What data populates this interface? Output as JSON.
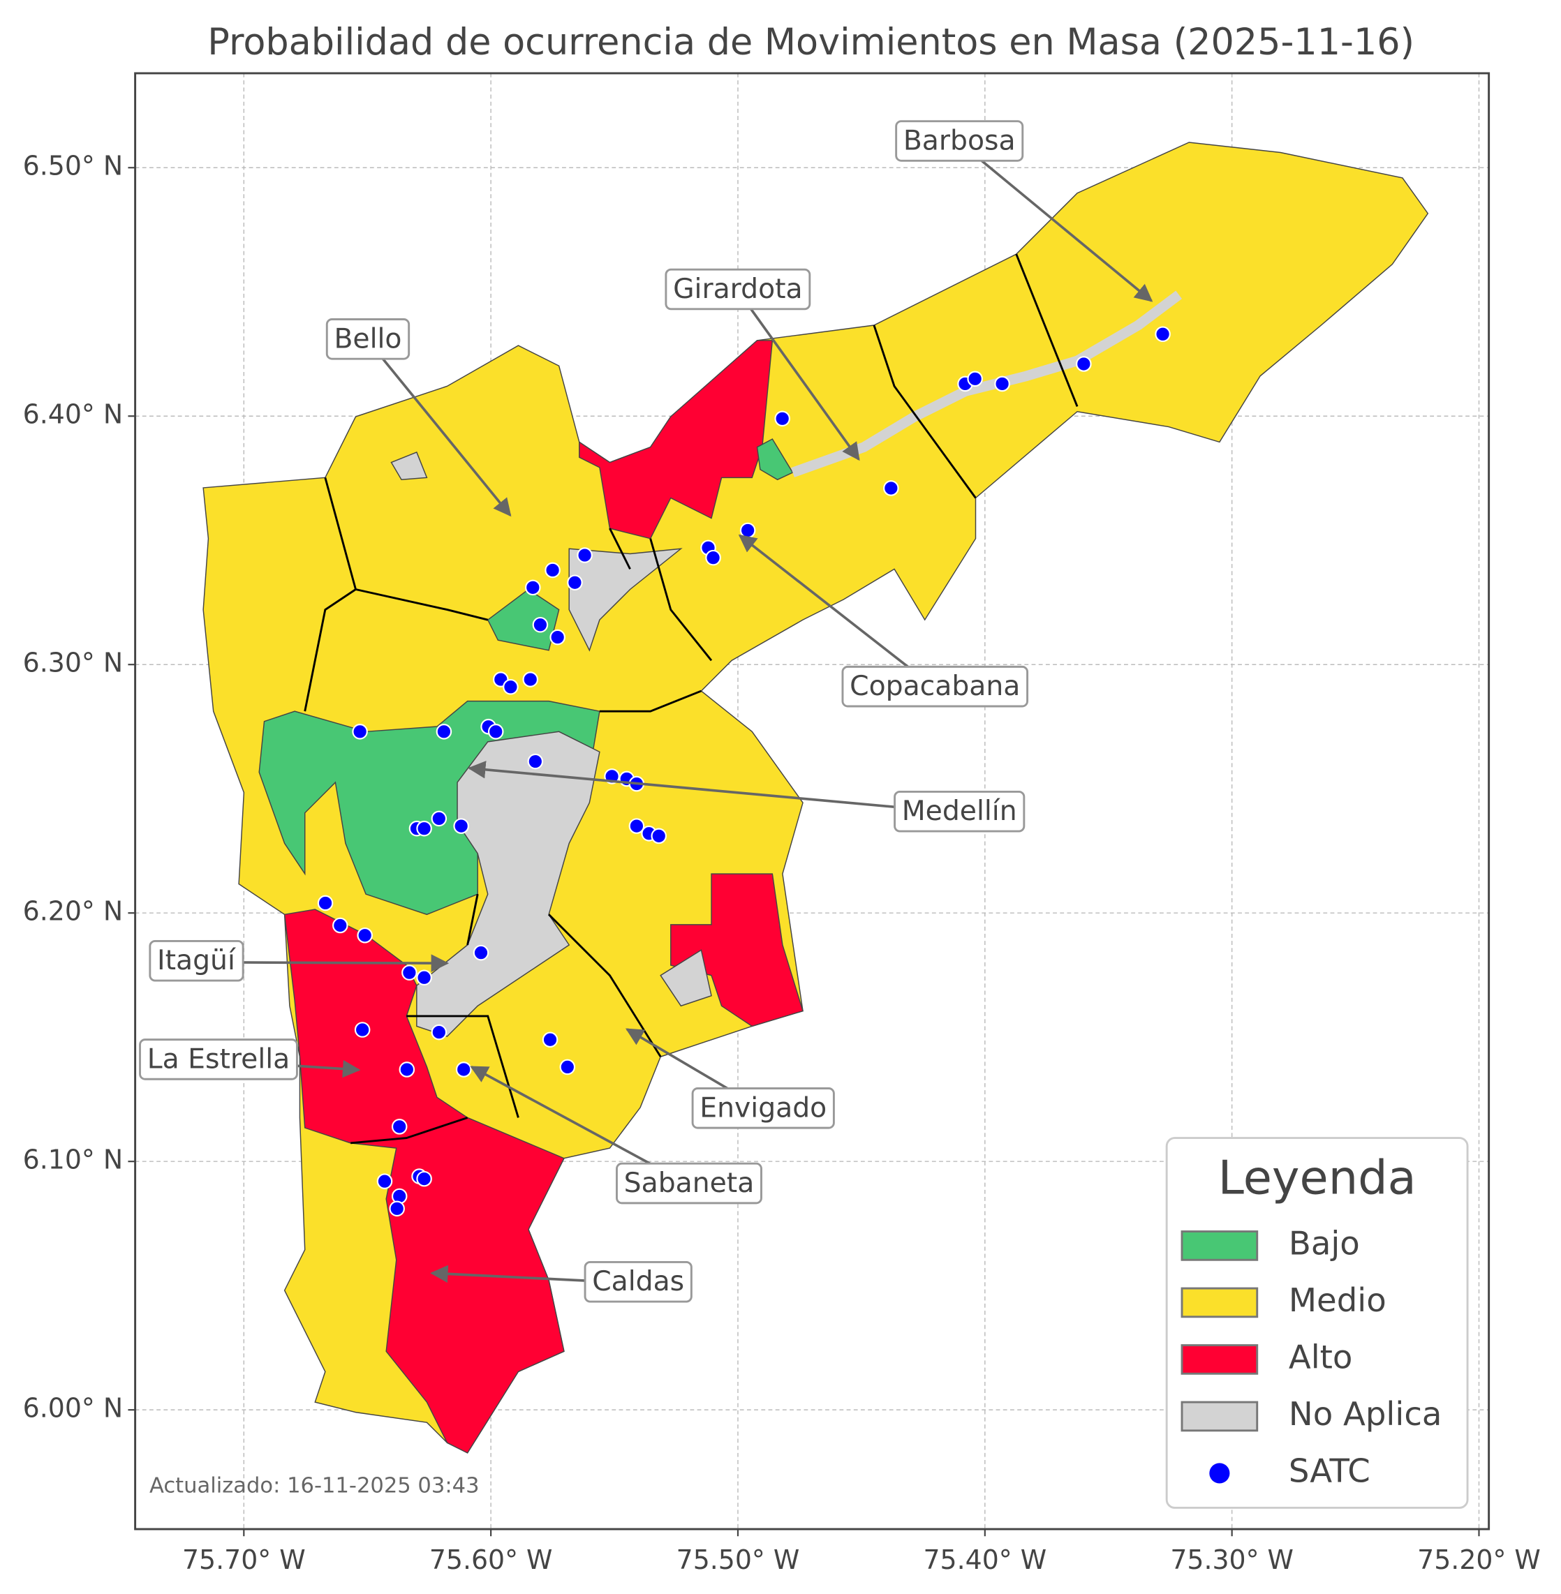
{
  "chart_data": {
    "type": "map",
    "title": "Probabilidad de ocurrencia de Movimientos en Masa (2025-11-16)",
    "xlim": [
      -75.744,
      -75.196
    ],
    "ylim": [
      5.952,
      6.538
    ],
    "grid": true,
    "xticks": [
      {
        "value": -75.7,
        "label": "75.70° W"
      },
      {
        "value": -75.6,
        "label": "75.60° W"
      },
      {
        "value": -75.5,
        "label": "75.50° W"
      },
      {
        "value": -75.4,
        "label": "75.40° W"
      },
      {
        "value": -75.3,
        "label": "75.30° W"
      },
      {
        "value": -75.2,
        "label": "75.20° W"
      }
    ],
    "yticks": [
      {
        "value": 6.0,
        "label": "6.00° N"
      },
      {
        "value": 6.1,
        "label": "6.10° N"
      },
      {
        "value": 6.2,
        "label": "6.20° N"
      },
      {
        "value": 6.3,
        "label": "6.30° N"
      },
      {
        "value": 6.4,
        "label": "6.40° N"
      },
      {
        "value": 6.5,
        "label": "6.50° N"
      }
    ],
    "annotations": [
      "Barbosa",
      "Girardota",
      "Bello",
      "Copacabana",
      "Medellín",
      "Itagüí",
      "La Estrella",
      "Envigado",
      "Sabaneta",
      "Caldas"
    ],
    "legend": {
      "title": "Leyenda",
      "entries": [
        {
          "name": "Bajo",
          "color": "#48c774"
        },
        {
          "name": "Medio",
          "color": "#fbe02a"
        },
        {
          "name": "Alto",
          "color": "#ff0033"
        },
        {
          "name": "No Aplica",
          "color": "#d3d3d3"
        }
      ]
    },
    "points": {
      "name": "SATC",
      "color": "#0000ff",
      "lon": [
        -75.482,
        -75.408,
        -75.404,
        -75.393,
        -75.36,
        -75.328,
        -75.438,
        -75.496,
        -75.512,
        -75.51,
        -75.562,
        -75.575,
        -75.566,
        -75.583,
        -75.58,
        -75.573,
        -75.596,
        -75.584,
        -75.592,
        -75.653,
        -75.619,
        -75.601,
        -75.598,
        -75.582,
        -75.551,
        -75.545,
        -75.541,
        -75.541,
        -75.536,
        -75.532,
        -75.621,
        -75.63,
        -75.627,
        -75.612,
        -75.667,
        -75.661,
        -75.651,
        -75.604,
        -75.633,
        -75.627,
        -75.652,
        -75.621,
        -75.634,
        -75.611,
        -75.576,
        -75.569,
        -75.637,
        -75.643,
        -75.629,
        -75.627,
        -75.637,
        -75.638
      ],
      "lat": [
        6.399,
        6.413,
        6.415,
        6.413,
        6.421,
        6.433,
        6.371,
        6.354,
        6.347,
        6.343,
        6.344,
        6.338,
        6.333,
        6.331,
        6.316,
        6.311,
        6.294,
        6.294,
        6.291,
        6.273,
        6.273,
        6.275,
        6.273,
        6.261,
        6.255,
        6.254,
        6.252,
        6.235,
        6.232,
        6.231,
        6.238,
        6.234,
        6.234,
        6.235,
        6.204,
        6.195,
        6.191,
        6.184,
        6.176,
        6.174,
        6.153,
        6.152,
        6.137,
        6.137,
        6.149,
        6.138,
        6.114,
        6.092,
        6.094,
        6.093,
        6.086,
        6.081
      ]
    },
    "note": "Actualizado: 16-11-2025 03:43"
  }
}
